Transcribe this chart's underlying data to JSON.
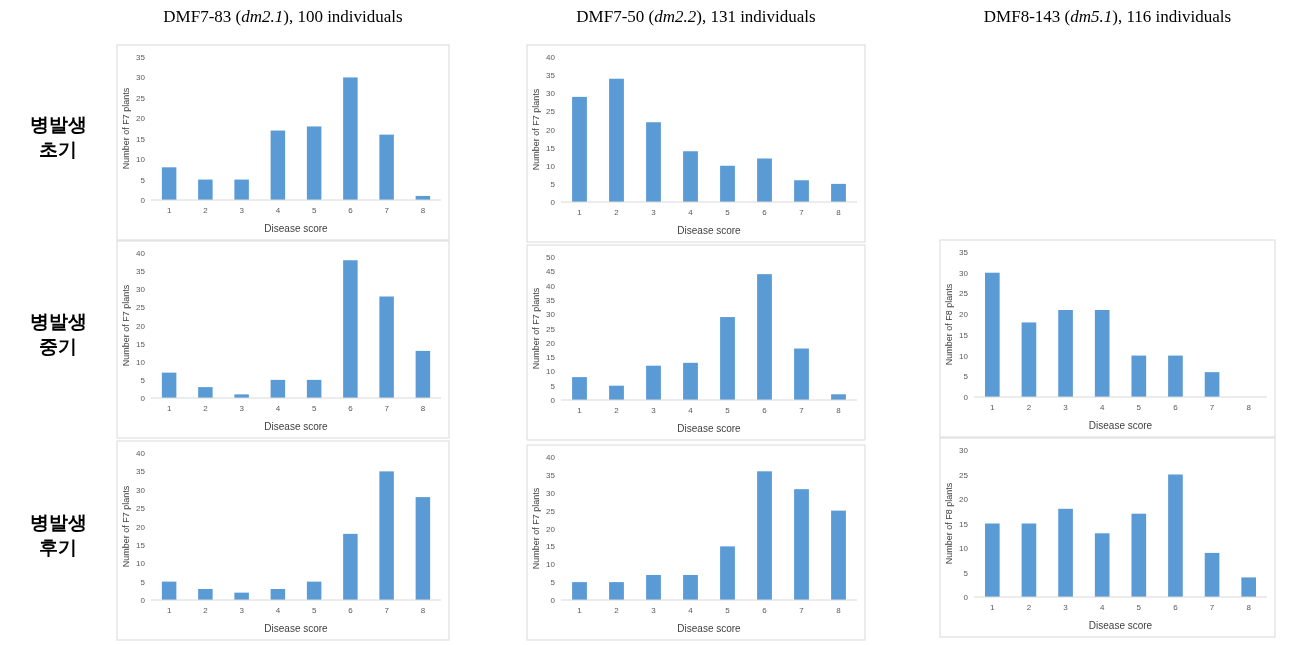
{
  "chart_data": [
    {
      "type": "bar",
      "title": "DMF7-83 (*dm2.1*), 100 individuals",
      "annotations": [
        "병발생 초기"
      ],
      "xlabel": "Disease score",
      "ylabel": "Number of F7 plants",
      "categories": [
        "1",
        "2",
        "3",
        "4",
        "5",
        "6",
        "7",
        "8"
      ],
      "values": [
        8,
        5,
        5,
        17,
        18,
        30,
        16,
        1
      ],
      "color": "#5b9bd5",
      "ylim": [
        0,
        35
      ],
      "yticks": [
        0,
        5,
        10,
        15,
        20,
        25,
        30,
        35
      ]
    },
    {
      "type": "bar",
      "title": "DMF7-50 (*dm2.2*), 131 individuals",
      "xlabel": "Disease score",
      "ylabel": "Number of F7 plants",
      "categories": [
        "1",
        "2",
        "3",
        "4",
        "5",
        "6",
        "7",
        "8"
      ],
      "values": [
        29,
        34,
        22,
        14,
        10,
        12,
        6,
        5
      ],
      "color": "#5b9bd5",
      "ylim": [
        0,
        40
      ],
      "yticks": [
        0,
        5,
        10,
        15,
        20,
        25,
        30,
        35,
        40
      ]
    },
    {
      "type": "bar",
      "annotations": [
        "병발생 중기"
      ],
      "xlabel": "Disease score",
      "ylabel": "Number of F7 plants",
      "categories": [
        "1",
        "2",
        "3",
        "4",
        "5",
        "6",
        "7",
        "8"
      ],
      "values": [
        7,
        3,
        1,
        5,
        5,
        38,
        28,
        13
      ],
      "color": "#5b9bd5",
      "ylim": [
        0,
        40
      ],
      "yticks": [
        0,
        5,
        10,
        15,
        20,
        25,
        30,
        35,
        40
      ]
    },
    {
      "type": "bar",
      "xlabel": "Disease score",
      "ylabel": "Number of F7 plants",
      "categories": [
        "1",
        "2",
        "3",
        "4",
        "5",
        "6",
        "7",
        "8"
      ],
      "values": [
        8,
        5,
        12,
        13,
        29,
        44,
        18,
        2
      ],
      "color": "#5b9bd5",
      "ylim": [
        0,
        50
      ],
      "yticks": [
        0,
        5,
        10,
        15,
        20,
        25,
        30,
        35,
        40,
        45,
        50
      ]
    },
    {
      "type": "bar",
      "title": "DMF8-143 (*dm5.1*), 116 individuals",
      "xlabel": "Disease score",
      "ylabel": "Number of F8 plants",
      "categories": [
        "1",
        "2",
        "3",
        "4",
        "5",
        "6",
        "7",
        "8"
      ],
      "values": [
        30,
        18,
        21,
        21,
        10,
        10,
        6,
        0
      ],
      "color": "#5b9bd5",
      "ylim": [
        0,
        35
      ],
      "yticks": [
        0,
        5,
        10,
        15,
        20,
        25,
        30,
        35
      ]
    },
    {
      "type": "bar",
      "annotations": [
        "병발생 후기"
      ],
      "xlabel": "Disease score",
      "ylabel": "Number of F7 plants",
      "categories": [
        "1",
        "2",
        "3",
        "4",
        "5",
        "6",
        "7",
        "8"
      ],
      "values": [
        5,
        3,
        2,
        3,
        5,
        18,
        35,
        28
      ],
      "color": "#5b9bd5",
      "ylim": [
        0,
        40
      ],
      "yticks": [
        0,
        5,
        10,
        15,
        20,
        25,
        30,
        35,
        40
      ]
    },
    {
      "type": "bar",
      "xlabel": "Disease score",
      "ylabel": "Number of F7 plants",
      "categories": [
        "1",
        "2",
        "3",
        "4",
        "5",
        "6",
        "7",
        "8"
      ],
      "values": [
        5,
        5,
        7,
        7,
        15,
        36,
        31,
        25
      ],
      "color": "#5b9bd5",
      "ylim": [
        0,
        40
      ],
      "yticks": [
        0,
        5,
        10,
        15,
        20,
        25,
        30,
        35,
        40
      ]
    },
    {
      "type": "bar",
      "xlabel": "Disease score",
      "ylabel": "Number of F8 plants",
      "categories": [
        "1",
        "2",
        "3",
        "4",
        "5",
        "6",
        "7",
        "8"
      ],
      "values": [
        15,
        15,
        18,
        13,
        17,
        25,
        9,
        4
      ],
      "color": "#5b9bd5",
      "ylim": [
        0,
        30
      ],
      "yticks": [
        0,
        5,
        10,
        15,
        20,
        25,
        30
      ]
    }
  ]
}
